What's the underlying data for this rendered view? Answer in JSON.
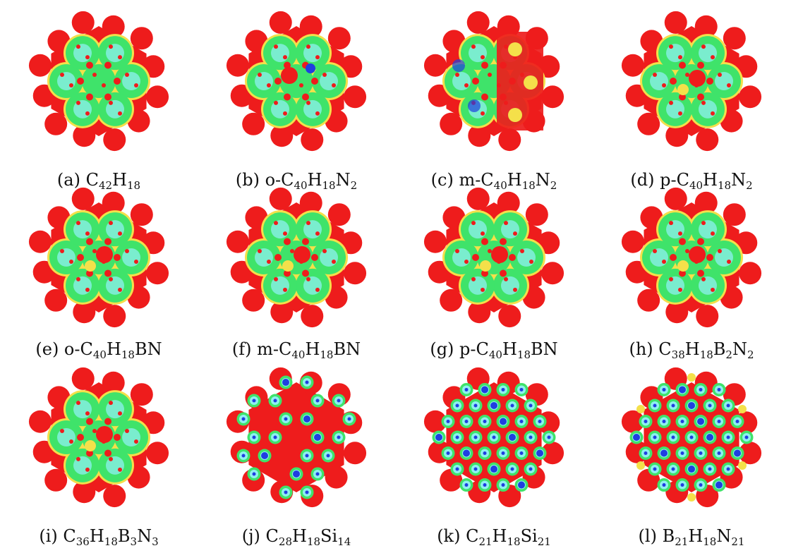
{
  "panels": [
    {
      "caption": [
        "(a) C",
        {
          "s": "42"
        },
        "H",
        {
          "s": "18"
        }
      ],
      "variant": "pah"
    },
    {
      "caption": [
        "(b) o-C",
        {
          "s": "40"
        },
        "H",
        {
          "s": "18"
        },
        "N",
        {
          "s": "2"
        }
      ],
      "variant": "pah-n-ortho"
    },
    {
      "caption": [
        "(c) m-C",
        {
          "s": "40"
        },
        "H",
        {
          "s": "18"
        },
        "N",
        {
          "s": "2"
        }
      ],
      "variant": "pah-n-meta"
    },
    {
      "caption": [
        "(d) p-C",
        {
          "s": "40"
        },
        "H",
        {
          "s": "18"
        },
        "N",
        {
          "s": "2"
        }
      ],
      "variant": "pah-n-para"
    },
    {
      "caption": [
        "(e) o-C",
        {
          "s": "40"
        },
        "H",
        {
          "s": "18"
        },
        "BN"
      ],
      "variant": "pah-bn"
    },
    {
      "caption": [
        "(f) m-C",
        {
          "s": "40"
        },
        "H",
        {
          "s": "18"
        },
        "BN"
      ],
      "variant": "pah-bn"
    },
    {
      "caption": [
        "(g) p-C",
        {
          "s": "40"
        },
        "H",
        {
          "s": "18"
        },
        "BN"
      ],
      "variant": "pah-bn"
    },
    {
      "caption": [
        "(h) C",
        {
          "s": "38"
        },
        "H",
        {
          "s": "18"
        },
        "B",
        {
          "s": "2"
        },
        "N",
        {
          "s": "2"
        }
      ],
      "variant": "pah-bn"
    },
    {
      "caption": [
        "(i) C",
        {
          "s": "36"
        },
        "H",
        {
          "s": "18"
        },
        "B",
        {
          "s": "3"
        },
        "N",
        {
          "s": "3"
        }
      ],
      "variant": "pah-bn3"
    },
    {
      "caption": [
        "(j) C",
        {
          "s": "28"
        },
        "H",
        {
          "s": "18"
        },
        "Si",
        {
          "s": "14"
        }
      ],
      "variant": "si-mixed"
    },
    {
      "caption": [
        "(k) C",
        {
          "s": "21"
        },
        "H",
        {
          "s": "18"
        },
        "Si",
        {
          "s": "21"
        }
      ],
      "variant": "si-full"
    },
    {
      "caption": [
        "(l) B",
        {
          "s": "21"
        },
        "H",
        {
          "s": "18"
        },
        "N",
        {
          "s": "21"
        }
      ],
      "variant": "bn-full"
    }
  ],
  "colors": {
    "red": "#ee1c1c",
    "yellow": "#f4e04a",
    "green": "#3fe36a",
    "cyan": "#8ff0f0",
    "blue": "#1f3fe0",
    "center": "#ff2a2a"
  }
}
